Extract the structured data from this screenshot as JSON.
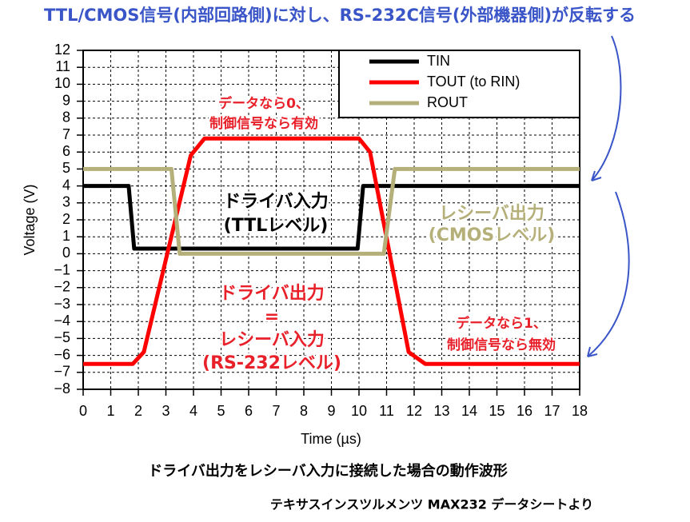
{
  "chart_data": {
    "type": "line",
    "title": "TTL/CMOS信号(内部回路側)に対し、RS-232C信号(外部機器側)が反転する",
    "xlabel": "Time (µs)",
    "ylabel": "Voltage (V)",
    "caption": "ドライバ出力をレシーバ入力に接続した場合の動作波形",
    "source": "テキサスインスツルメンツ MAX232 データシートより",
    "xlim": [
      0,
      18
    ],
    "ylim": [
      -8,
      12
    ],
    "xticks": [
      0,
      1,
      2,
      3,
      4,
      5,
      6,
      7,
      8,
      9,
      10,
      11,
      12,
      13,
      14,
      15,
      16,
      17,
      18
    ],
    "yticks": [
      {
        "value": -8,
        "label": "−8"
      },
      {
        "value": -7,
        "label": "−7"
      },
      {
        "value": -6,
        "label": "−6"
      },
      {
        "value": -5,
        "label": "−5"
      },
      {
        "value": -4,
        "label": "−4"
      },
      {
        "value": -3,
        "label": "−3"
      },
      {
        "value": -2,
        "label": "−2"
      },
      {
        "value": -1,
        "label": "−1"
      },
      0,
      1,
      2,
      3,
      4,
      5,
      6,
      7,
      8,
      9,
      10,
      11,
      12
    ],
    "grid": true,
    "legend": "upper right",
    "series": [
      {
        "name": "TIN",
        "color": "#000000",
        "x": [
          0,
          1.65,
          1.85,
          9.95,
          10.15,
          18
        ],
        "values": [
          4,
          4,
          0.3,
          0.3,
          4,
          4
        ]
      },
      {
        "name": "TOUT (to RIN)",
        "color": "#ff0000",
        "x": [
          0,
          1.8,
          2.2,
          3.9,
          4.4,
          10.0,
          10.4,
          11.8,
          12.4,
          18
        ],
        "values": [
          -6.5,
          -6.5,
          -5.8,
          5.8,
          6.8,
          6.8,
          6,
          -5.8,
          -6.5,
          -6.5
        ]
      },
      {
        "name": "ROUT",
        "color": "#b5b07a",
        "x": [
          0,
          3.2,
          3.5,
          10.9,
          11.3,
          18
        ],
        "values": [
          5,
          5,
          0,
          0,
          5,
          5
        ]
      }
    ],
    "annotations": [
      {
        "lines": [
          "データなら0、",
          "制御信号なら有効"
        ],
        "color": "#e8202a"
      },
      {
        "lines": [
          "ドライバ入力",
          "(TTLレベル)"
        ],
        "color": "#000000"
      },
      {
        "lines": [
          "レシーバ出力",
          "(CMOSレベル)"
        ],
        "color": "#b5b07a"
      },
      {
        "lines": [
          "ドライバ出力",
          "=",
          "レシーバ入力",
          "(RS-232レベル)"
        ],
        "color": "#e8202a"
      },
      {
        "lines": [
          "データなら1、",
          "制御信号なら無効"
        ],
        "color": "#e8202a"
      }
    ]
  }
}
